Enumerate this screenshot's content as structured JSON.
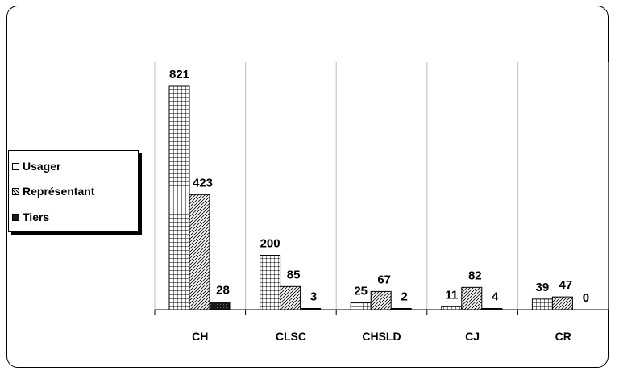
{
  "chart_data": {
    "type": "bar",
    "categories": [
      "CH",
      "CLSC",
      "CHSLD",
      "CJ",
      "CR"
    ],
    "series": [
      {
        "name": "Usager",
        "values": [
          821,
          200,
          25,
          11,
          39
        ],
        "pattern": "grid"
      },
      {
        "name": "Représentant",
        "values": [
          423,
          85,
          67,
          82,
          47
        ],
        "pattern": "diagonal"
      },
      {
        "name": "Tiers",
        "values": [
          28,
          3,
          2,
          4,
          0
        ],
        "pattern": "solid"
      }
    ],
    "data_labels": [
      [
        "821",
        "423",
        "28"
      ],
      [
        "200",
        "85",
        "3"
      ],
      [
        "25",
        "67",
        "2"
      ],
      [
        "11",
        "82",
        "4"
      ],
      [
        "39",
        "47",
        "0"
      ]
    ],
    "ylim": [
      0,
      850
    ],
    "grid": "vertical separators between categories",
    "legend_position": "left"
  },
  "legend": {
    "items": [
      {
        "label": "Usager",
        "pattern": "grid"
      },
      {
        "label": "Représentant",
        "pattern": "diagonal"
      },
      {
        "label": "Tiers",
        "pattern": "solid"
      }
    ]
  },
  "colors": {
    "stroke": "#000000",
    "fill": "#ffffff",
    "tiers": "#1a1a1a"
  }
}
